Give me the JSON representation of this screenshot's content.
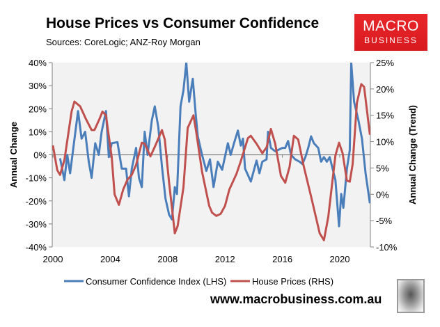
{
  "title": "House Prices vs Consumer Confidence",
  "subtitle": "Sources: CoreLogic; ANZ-Roy Morgan",
  "logo": {
    "line1": "MACRO",
    "line2": "BUSINESS",
    "color": "#e0201f"
  },
  "website": "www.macrobusiness.com.au",
  "chart_data": {
    "type": "line",
    "title": "House Prices vs Consumer Confidence",
    "ylabel": "Annual Change",
    "y2label": "Annual Change (Trend)",
    "xlim": [
      2000,
      2022.1
    ],
    "ylim": [
      -40,
      40
    ],
    "y2lim": [
      -10,
      25
    ],
    "xticks": [
      "2000",
      "2004",
      "2008",
      "2012",
      "2016",
      "2020"
    ],
    "yticks": [
      "-40%",
      "-30%",
      "-20%",
      "-10%",
      "0%",
      "10%",
      "20%",
      "30%",
      "40%"
    ],
    "y2ticks": [
      "-10%",
      "-5%",
      "0%",
      "5%",
      "10%",
      "15%",
      "20%",
      "25%"
    ],
    "grid": false,
    "plot_background": "#f2f2f2",
    "legend": "bottom",
    "series": [
      {
        "name": "Consumer Confidence Index (LHS)",
        "axis": "left",
        "color": "#4a7ebb",
        "x": [
          2000.5,
          2000.8,
          2001.0,
          2001.2,
          2001.75,
          2002.0,
          2002.25,
          2002.5,
          2002.7,
          2002.95,
          2003.2,
          2003.4,
          2003.7,
          2003.9,
          2004.1,
          2004.5,
          2004.8,
          2005.1,
          2005.3,
          2005.5,
          2005.8,
          2006.0,
          2006.2,
          2006.4,
          2006.6,
          2006.9,
          2007.1,
          2007.35,
          2007.6,
          2007.85,
          2008.1,
          2008.3,
          2008.5,
          2008.65,
          2008.9,
          2009.1,
          2009.3,
          2009.5,
          2009.75,
          2009.95,
          2010.1,
          2010.4,
          2010.7,
          2010.95,
          2011.2,
          2011.5,
          2011.8,
          2012.2,
          2012.4,
          2012.6,
          2012.9,
          2013.1,
          2013.25,
          2013.4,
          2013.8,
          2014.2,
          2014.4,
          2014.6,
          2014.9,
          2015.0,
          2015.2,
          2015.5,
          2016.0,
          2016.2,
          2016.4,
          2016.6,
          2016.9,
          2017.2,
          2017.4,
          2017.6,
          2017.8,
          2018.0,
          2018.2,
          2018.5,
          2018.7,
          2018.9,
          2019.1,
          2019.3,
          2019.7,
          2019.95,
          2020.1,
          2020.25,
          2020.5,
          2020.7,
          2020.8,
          2021.0,
          2021.3,
          2021.55,
          2021.8,
          2021.95,
          2022.1
        ],
        "y": [
          -1.5,
          -11,
          0,
          -8,
          19,
          7,
          10,
          -3,
          -10,
          5,
          0,
          10,
          19,
          -1,
          5,
          5.5,
          -6,
          -6,
          -18,
          -6,
          3,
          -10,
          -14,
          10,
          0,
          15,
          21,
          12,
          -5,
          -19,
          -26,
          -28,
          -14,
          -17,
          21,
          28,
          40,
          23,
          33,
          18,
          8,
          0,
          -7,
          -2,
          -14,
          -3,
          -6.5,
          5,
          0,
          4.5,
          10.5,
          4,
          7,
          -6,
          -11.6,
          -2.5,
          -8,
          -3,
          -2,
          10,
          3,
          1.5,
          3,
          3,
          6,
          0,
          -2,
          -3,
          -4,
          -1,
          3,
          8,
          5,
          3,
          -3,
          -1,
          -3,
          -1,
          -11,
          -31,
          -17,
          -23,
          -6,
          2,
          40,
          23,
          15,
          7,
          -8,
          -14.5,
          -21
        ]
      },
      {
        "name": "House Prices (RHS)",
        "axis": "right",
        "color": "#c0504d",
        "x": [
          2000.0,
          2000.3,
          2000.5,
          2000.8,
          2001.3,
          2001.5,
          2001.9,
          2002.3,
          2002.7,
          2002.9,
          2003.25,
          2003.45,
          2003.7,
          2004.1,
          2004.3,
          2004.6,
          2004.9,
          2005.2,
          2005.5,
          2005.8,
          2006.2,
          2006.4,
          2006.8,
          2007.2,
          2007.6,
          2007.8,
          2008.1,
          2008.5,
          2008.7,
          2009.1,
          2009.4,
          2009.8,
          2010.0,
          2010.4,
          2010.9,
          2011.1,
          2011.4,
          2011.7,
          2012.0,
          2012.3,
          2012.8,
          2013.1,
          2013.6,
          2013.8,
          2014.2,
          2014.6,
          2014.9,
          2015.2,
          2015.5,
          2015.9,
          2016.2,
          2016.5,
          2016.8,
          2017.1,
          2017.5,
          2018.0,
          2018.3,
          2018.6,
          2018.9,
          2019.2,
          2019.7,
          2019.95,
          2020.2,
          2020.5,
          2020.7,
          2020.9,
          2021.2,
          2021.5,
          2021.7,
          2022.1
        ],
        "y": [
          9.3,
          4.6,
          3.7,
          6.5,
          15.7,
          17.6,
          16.7,
          14.3,
          12.2,
          12.2,
          14.3,
          15.7,
          15,
          7,
          0,
          -2,
          0.9,
          2.8,
          3.7,
          5.6,
          9.8,
          9.6,
          7.2,
          9.6,
          12.2,
          10.4,
          2.2,
          -7.4,
          -6,
          1.3,
          12.6,
          15,
          11.7,
          4.3,
          -2.2,
          -3.5,
          -4.1,
          -3.7,
          -2.2,
          0.9,
          3.9,
          6.3,
          10.7,
          11.1,
          9.6,
          7.8,
          8.9,
          12.4,
          9.6,
          3.5,
          2.2,
          5.2,
          11.1,
          10.4,
          5.2,
          -0.4,
          -3.9,
          -7.4,
          -8.7,
          -4.3,
          7.4,
          9.8,
          7.8,
          2.6,
          2.4,
          5.7,
          17.4,
          20.9,
          20.4,
          11.3
        ]
      }
    ]
  }
}
